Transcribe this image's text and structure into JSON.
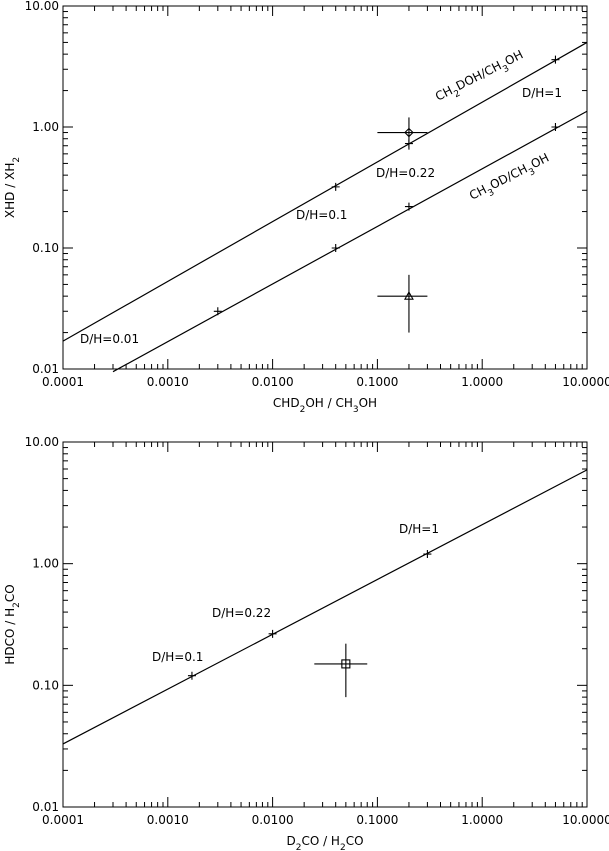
{
  "chart_data": [
    {
      "type": "line",
      "title": "",
      "xlabel_parts": [
        "CHD",
        "2",
        "OH / CH",
        "3",
        "OH"
      ],
      "ylabel_parts": [
        "XHD / XH",
        "2"
      ],
      "xscale": "log",
      "yscale": "log",
      "xlim": [
        0.0001,
        10
      ],
      "ylim": [
        0.01,
        10
      ],
      "xtick_labels": [
        "0.0001",
        "0.0010",
        "0.0100",
        "0.1000",
        "1.0000",
        "10.0000"
      ],
      "ytick_labels": [
        "0.01",
        "0.10",
        "1.00",
        "10.00"
      ],
      "series": [
        {
          "name": "CH2DOH/CH3OH",
          "line": [
            [
              0.0001,
              0.017
            ],
            [
              10,
              5.0
            ]
          ],
          "markers": [
            {
              "x": 0.003,
              "y": 0.03,
              "label": "D/H=0.01"
            },
            {
              "x": 0.04,
              "y": 0.32,
              "label": "D/H=0.1"
            },
            {
              "x": 0.2,
              "y": 0.73,
              "label": "D/H=0.22"
            },
            {
              "x": 5.0,
              "y": 3.6,
              "label": "D/H=1"
            }
          ]
        },
        {
          "name": "CH3OD/CH3OH",
          "line": [
            [
              0.0003,
              0.0095
            ],
            [
              10,
              1.35
            ]
          ],
          "markers": [
            {
              "x": 0.04,
              "y": 0.1
            },
            {
              "x": 0.2,
              "y": 0.22
            },
            {
              "x": 5.0,
              "y": 1.0
            }
          ]
        }
      ],
      "observations": [
        {
          "symbol": "diamond",
          "x": 0.2,
          "y": 0.9,
          "xerr": [
            0.1,
            0.3
          ],
          "yerr": [
            0.65,
            1.2
          ]
        },
        {
          "symbol": "triangle",
          "x": 0.2,
          "y": 0.04,
          "xerr": [
            0.1,
            0.3
          ],
          "yerr": [
            0.02,
            0.06
          ]
        }
      ],
      "curve_labels": [
        {
          "parts": [
            "CH",
            "2",
            "DOH/CH",
            "3",
            "OH"
          ],
          "series": 0
        },
        {
          "parts": [
            "CH",
            "3",
            "OD/CH",
            "3",
            "OH"
          ],
          "series": 1
        }
      ],
      "annotations": [
        "D/H=0.01",
        "D/H=0.1",
        "D/H=0.22",
        "D/H=1"
      ]
    },
    {
      "type": "line",
      "title": "",
      "xlabel_parts": [
        "D",
        "2",
        "CO / H",
        "2",
        "CO"
      ],
      "ylabel_parts": [
        "HDCO / H",
        "2",
        "CO"
      ],
      "xscale": "log",
      "yscale": "log",
      "xlim": [
        0.0001,
        10
      ],
      "ylim": [
        0.01,
        10
      ],
      "xtick_labels": [
        "0.0001",
        "0.0010",
        "0.0100",
        "0.1000",
        "1.0000",
        "10.0000"
      ],
      "ytick_labels": [
        "0.01",
        "0.10",
        "1.00",
        "10.00"
      ],
      "series": [
        {
          "line": [
            [
              0.0001,
              0.033
            ],
            [
              10,
              5.9
            ]
          ],
          "markers": [
            {
              "x": 0.0017,
              "y": 0.12,
              "label": "D/H=0.1"
            },
            {
              "x": 0.01,
              "y": 0.265,
              "label": "D/H=0.22"
            },
            {
              "x": 0.3,
              "y": 1.2,
              "label": "D/H=1"
            }
          ]
        }
      ],
      "observations": [
        {
          "symbol": "square",
          "x": 0.05,
          "y": 0.15,
          "xerr": [
            0.025,
            0.08
          ],
          "yerr": [
            0.08,
            0.22
          ]
        }
      ],
      "annotations": [
        "D/H=0.1",
        "D/H=0.22",
        "D/H=1"
      ]
    }
  ]
}
